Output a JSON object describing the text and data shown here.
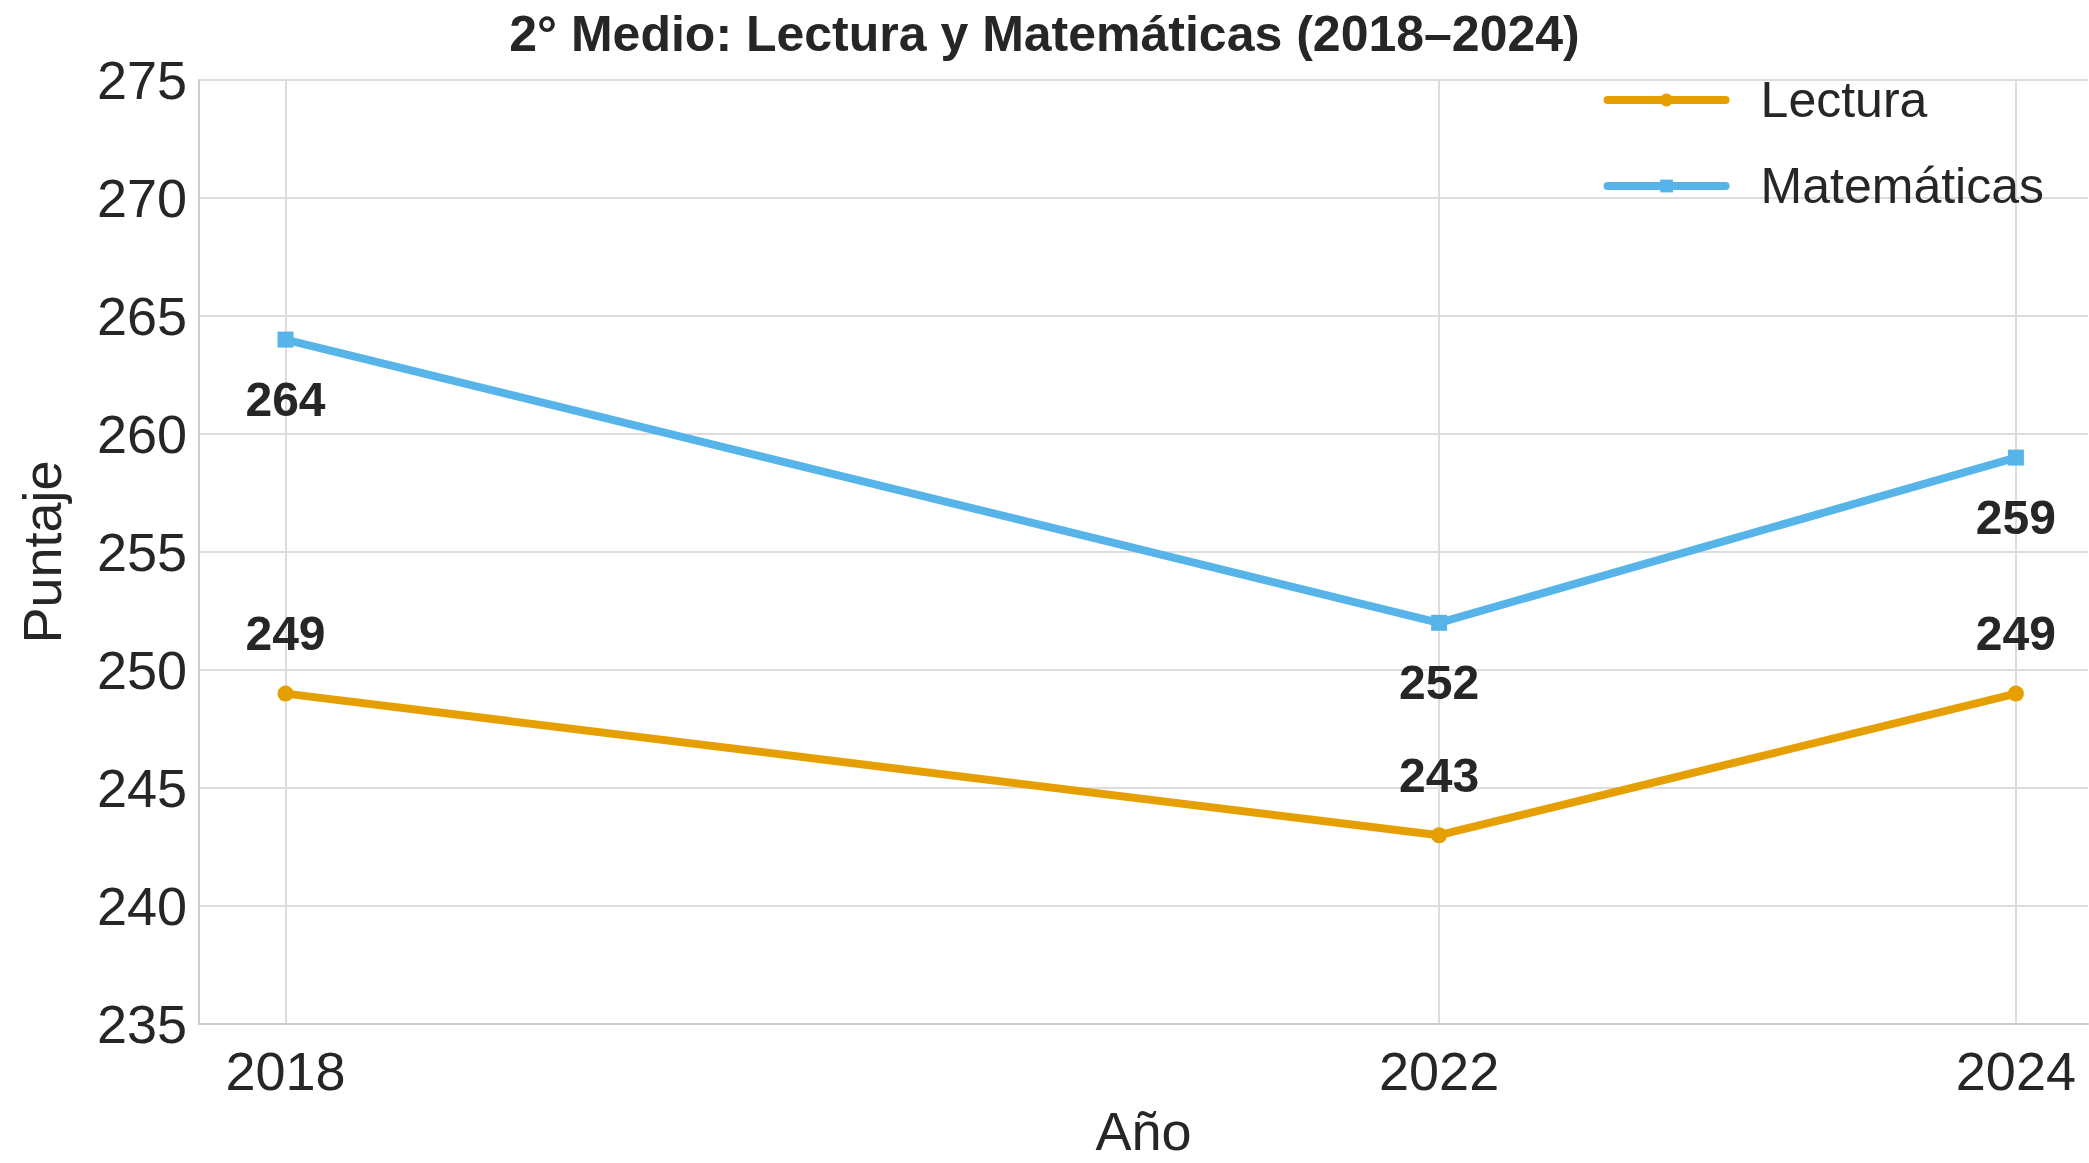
{
  "chart_data": {
    "type": "line",
    "title": "2° Medio: Lectura y Matemáticas (2018–2024)",
    "xlabel": "Año",
    "ylabel": "Puntaje",
    "x": [
      2018,
      2022,
      2024
    ],
    "series": [
      {
        "name": "Lectura",
        "color": "#e69f00",
        "values": [
          249,
          243,
          249
        ],
        "marker": "circle"
      },
      {
        "name": "Matemáticas",
        "color": "#56b4e9",
        "values": [
          264,
          252,
          259
        ],
        "marker": "square"
      }
    ],
    "xlim": [
      2017.7,
      2024.25
    ],
    "xticks": [
      2018,
      2022,
      2024
    ],
    "ylim": [
      235,
      275
    ],
    "yticks": [
      235,
      240,
      245,
      250,
      255,
      260,
      265,
      270,
      275
    ],
    "grid": true,
    "legend": "top right",
    "data_labels": true,
    "line_style": "solid"
  }
}
